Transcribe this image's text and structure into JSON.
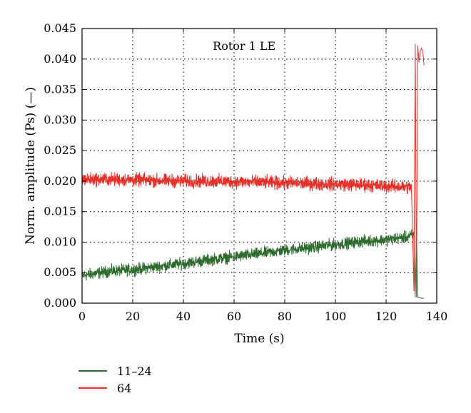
{
  "chart_data": {
    "type": "line",
    "title": "",
    "annotation": "Rotor 1 LE",
    "xlabel": "Time (s)",
    "ylabel": "Norm. amplitude (Ps) (—)",
    "xlim": [
      0,
      140
    ],
    "ylim": [
      0,
      0.045
    ],
    "xticks": [
      "0",
      "20",
      "40",
      "60",
      "80",
      "100",
      "120",
      "140"
    ],
    "yticks": [
      "0.000",
      "0.005",
      "0.010",
      "0.015",
      "0.020",
      "0.025",
      "0.030",
      "0.035",
      "0.040",
      "0.045"
    ],
    "grid": true,
    "legend_position": "below",
    "series": [
      {
        "name": "11–24",
        "color": "#2d6a2d",
        "x": [
          0,
          10,
          20,
          30,
          40,
          50,
          60,
          70,
          80,
          90,
          100,
          110,
          120,
          128,
          131,
          131.5,
          132,
          132.5,
          133,
          134,
          135
        ],
        "values": [
          0.0045,
          0.0052,
          0.0055,
          0.006,
          0.0065,
          0.0071,
          0.0076,
          0.0081,
          0.0087,
          0.0091,
          0.0096,
          0.0101,
          0.0104,
          0.0108,
          0.0112,
          0.001,
          0.012,
          0.001,
          0.0009,
          0.0008,
          0.0008
        ],
        "noise": 0.0007
      },
      {
        "name": "64",
        "color": "#e8302a",
        "x": [
          0,
          10,
          20,
          30,
          40,
          50,
          60,
          70,
          80,
          90,
          100,
          110,
          120,
          130,
          131,
          131.5,
          132,
          132.5,
          133,
          133.5,
          134,
          134.5,
          135
        ],
        "values": [
          0.0203,
          0.0203,
          0.0202,
          0.0201,
          0.02,
          0.02,
          0.0199,
          0.0198,
          0.0197,
          0.0196,
          0.0195,
          0.0194,
          0.0192,
          0.019,
          0.002,
          0.0425,
          0.001,
          0.0422,
          0.0395,
          0.0412,
          0.0418,
          0.0412,
          0.039
        ],
        "noise": 0.0008
      }
    ]
  }
}
